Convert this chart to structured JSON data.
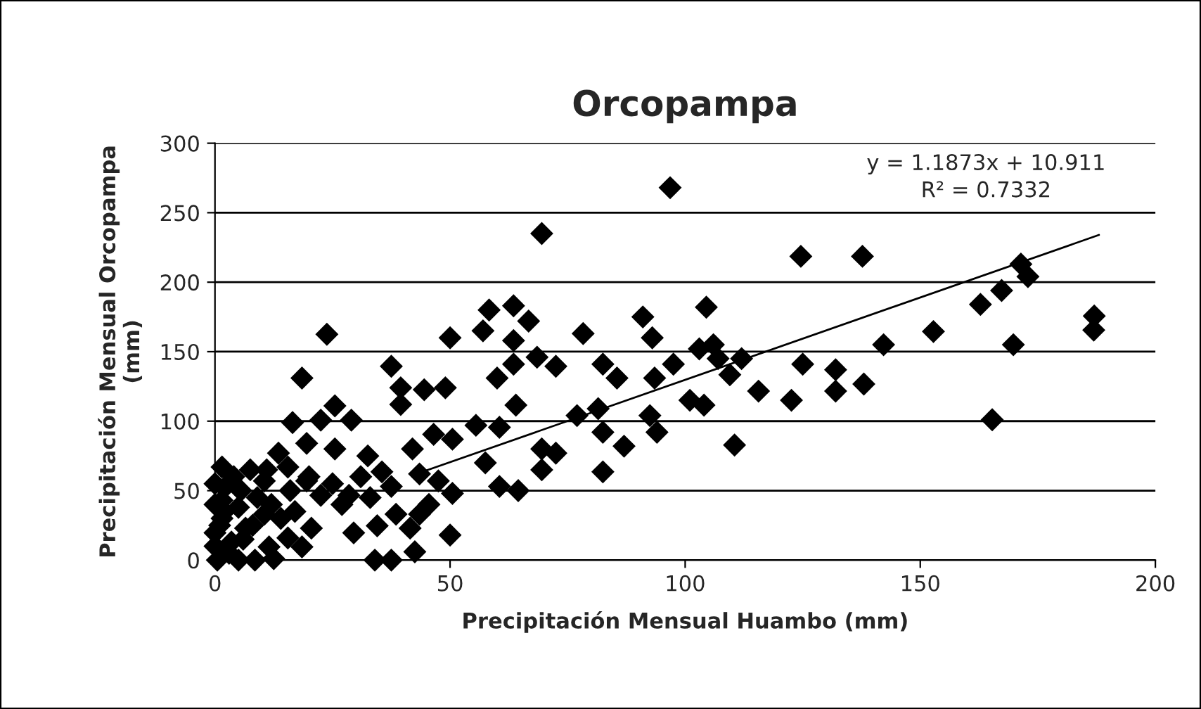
{
  "chart_data": {
    "type": "scatter",
    "title": "Orcopampa",
    "xlabel": "Precipitación Mensual Huambo (mm)",
    "ylabel": "Precipitación Mensual Orcopampa\n(mm)",
    "xlim": [
      0,
      200
    ],
    "xticks": [
      0,
      50,
      100,
      150,
      200
    ],
    "ylim": [
      0,
      300
    ],
    "yticks": [
      0,
      50,
      100,
      150,
      200,
      250,
      300
    ],
    "grid": "y",
    "marker": "diamond",
    "legend": false,
    "annotations": [
      "y = 1.1873x + 10.911",
      "R² = 0.7332"
    ],
    "series": [
      {
        "color": "#000000",
        "x": [
          96.8,
          69.5,
          23.8,
          50,
          58.3,
          63.5,
          57,
          66.7,
          63.5,
          78.3,
          91,
          93,
          18.5,
          37.5,
          39.5,
          44.5,
          49,
          39.5,
          60,
          63.5,
          68.5,
          72.5,
          82.5,
          85.5,
          93.5,
          97.5,
          64,
          25.5,
          29,
          16.5,
          22.5,
          77,
          81.5,
          82.5,
          87,
          92.5,
          94,
          19.5,
          25.5,
          32.5,
          55.5,
          60.5,
          69.5,
          72.5,
          69.5,
          82.5,
          42,
          46.5,
          50.5,
          50.5,
          57.5,
          60.5,
          64.5,
          50,
          47.5,
          43.5,
          35.5,
          37.5,
          38.5,
          43.5,
          45.5,
          29.5,
          34.5,
          34,
          37.5,
          42.5,
          41.5,
          28.5,
          20.5,
          1.5,
          7.5,
          13.5,
          1.5,
          5.5,
          10.5,
          15.5,
          19.5,
          22.5,
          0,
          0.5,
          5,
          8.5,
          12.5,
          1.5,
          6.5,
          10.5,
          15.5,
          18.5,
          3.5,
          11.5,
          0,
          0,
          2,
          3,
          0,
          4,
          9,
          12,
          14,
          16,
          6,
          8,
          17,
          11,
          20,
          25,
          27,
          31,
          33,
          2,
          5,
          1,
          124.6,
          137.7,
          171.4,
          172.9,
          167.3,
          162.8,
          104.5,
          152.8,
          142.2,
          187,
          186.9,
          169.8,
          103,
          106,
          107,
          112,
          109.5,
          125,
          132,
          132,
          138,
          115.6,
          122.6,
          101,
          104,
          110.5,
          165.3
        ],
        "values": [
          268,
          235,
          162.5,
          160,
          180,
          183,
          165,
          172,
          158,
          163,
          175,
          160,
          131,
          139.5,
          124,
          122.6,
          124,
          112,
          131,
          141,
          146,
          139.5,
          141,
          131,
          131,
          141,
          111.5,
          111,
          100.7,
          99,
          100.7,
          104,
          109,
          92,
          82,
          104,
          92,
          84,
          80,
          75,
          97,
          95.6,
          80,
          77,
          65,
          63.5,
          80,
          90.5,
          87,
          48,
          70,
          53,
          50,
          18,
          57,
          62,
          63.5,
          53,
          33,
          33,
          40,
          19.6,
          24.7,
          0,
          0,
          6,
          23,
          46.6,
          23,
          67,
          65,
          77,
          43,
          50,
          57,
          67,
          57,
          46.6,
          19.6,
          0,
          0,
          0,
          1,
          30,
          23,
          33,
          16,
          9.5,
          13,
          9.5,
          40,
          55,
          35,
          5,
          10,
          60,
          45,
          40,
          30,
          50,
          15,
          25,
          35,
          65,
          60,
          55,
          40,
          60,
          45,
          52,
          38,
          25,
          218.6,
          218.6,
          213,
          204,
          194,
          184,
          182,
          164.5,
          155,
          175.7,
          165.5,
          155,
          152,
          155,
          145,
          145,
          133.4,
          141,
          137,
          121.6,
          126.7,
          121.6,
          115,
          115,
          111.5,
          82.8,
          101
        ]
      },
      {
        "type": "line",
        "color": "#000000",
        "marker": "none",
        "x": [
          42,
          188
        ],
        "values": [
          61,
          234
        ]
      }
    ]
  }
}
